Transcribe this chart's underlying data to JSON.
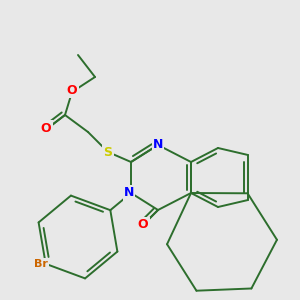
{
  "bg_color": "#e8e8e8",
  "atom_colors": {
    "O": "#ff0000",
    "N": "#0000ff",
    "S": "#cccc00",
    "Br": "#cc6600",
    "C": "#2d6e2d"
  },
  "bond_color": "#2d6e2d",
  "bond_width": 1.4
}
